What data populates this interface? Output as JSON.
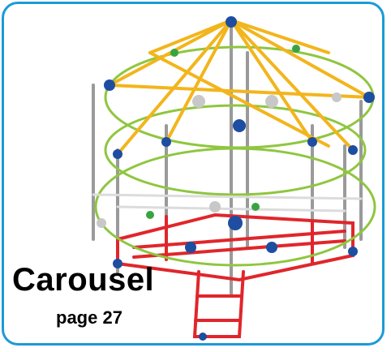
{
  "title": "Carousel",
  "page_ref": "page 27"
}
